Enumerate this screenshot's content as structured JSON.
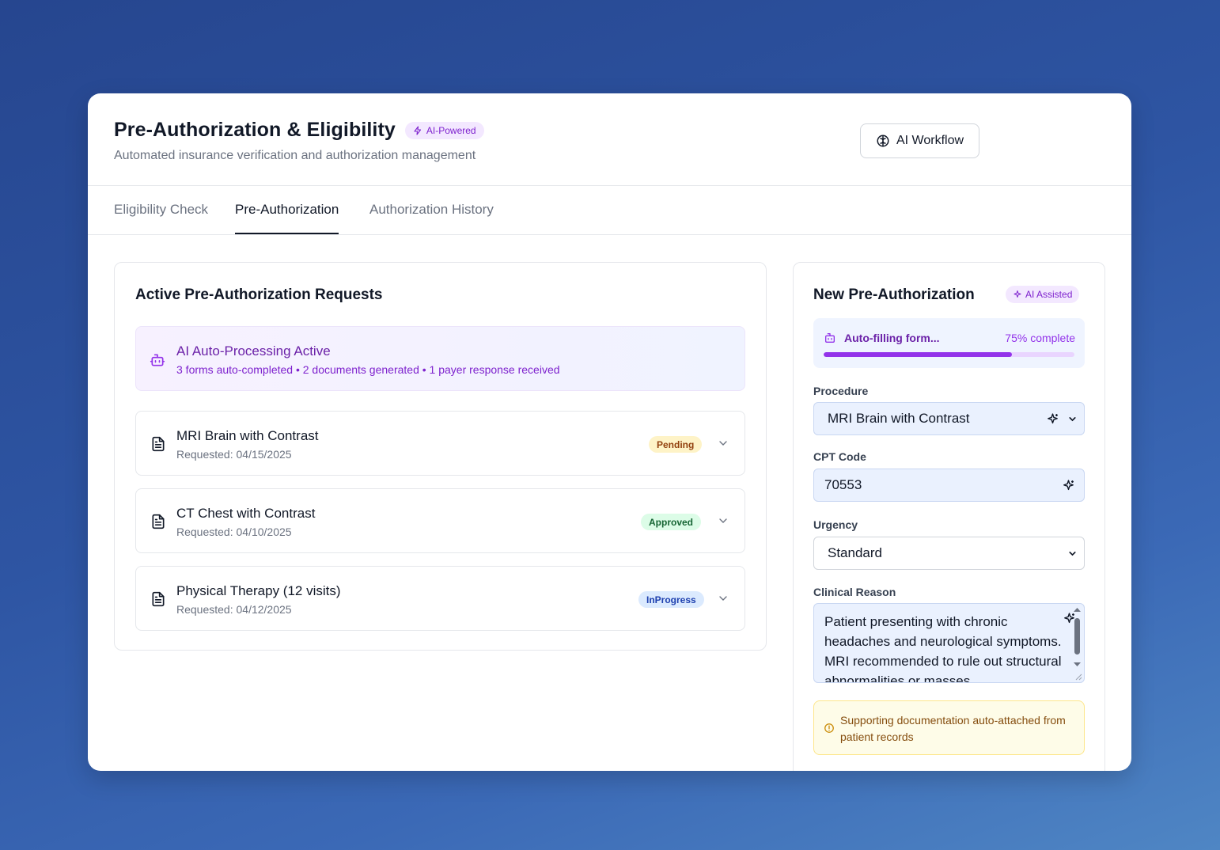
{
  "header": {
    "title": "Pre-Authorization & Eligibility",
    "badge": "AI-Powered",
    "subtitle": "Automated insurance verification and authorization management",
    "workflow_button": "AI Workflow"
  },
  "tabs": [
    {
      "label": "Eligibility Check",
      "active": false
    },
    {
      "label": "Pre-Authorization",
      "active": true
    },
    {
      "label": "Authorization History",
      "active": false
    }
  ],
  "active_requests": {
    "title": "Active Pre-Authorization Requests",
    "banner": {
      "title": "AI Auto-Processing Active",
      "summary": "3 forms auto-completed • 2 documents generated • 1 payer response received"
    },
    "items": [
      {
        "name": "MRI Brain with Contrast",
        "date": "Requested: 04/15/2025",
        "status": "Pending"
      },
      {
        "name": "CT Chest with Contrast",
        "date": "Requested: 04/10/2025",
        "status": "Approved"
      },
      {
        "name": "Physical Therapy (12 visits)",
        "date": "Requested: 04/12/2025",
        "status": "InProgress"
      }
    ]
  },
  "new_auth": {
    "title": "New Pre-Authorization",
    "badge": "AI Assisted",
    "progress_label": "Auto-filling form...",
    "progress_text": "75% complete",
    "progress_value": 0.75,
    "procedure_label": "Procedure",
    "procedure_value": "MRI Brain with Contrast",
    "cpt_label": "CPT Code",
    "cpt_value": "70553",
    "urgency_label": "Urgency",
    "urgency_value": "Standard",
    "reason_label": "Clinical Reason",
    "reason_value": "Patient presenting with chronic headaches and neurological symptoms. MRI recommended to rule out structural abnormalities or masses.",
    "support_note": "Supporting documentation auto-attached from patient records"
  },
  "colors": {
    "accent_purple": "#9333ea",
    "pending": "#fef3c7",
    "approved": "#dcfce7",
    "in_progress": "#dbeafe"
  },
  "icons": [
    "zap-icon",
    "brain-icon",
    "bot-icon",
    "file-text-icon",
    "chevron-down-icon",
    "sparkles-icon",
    "alert-circle-icon"
  ]
}
